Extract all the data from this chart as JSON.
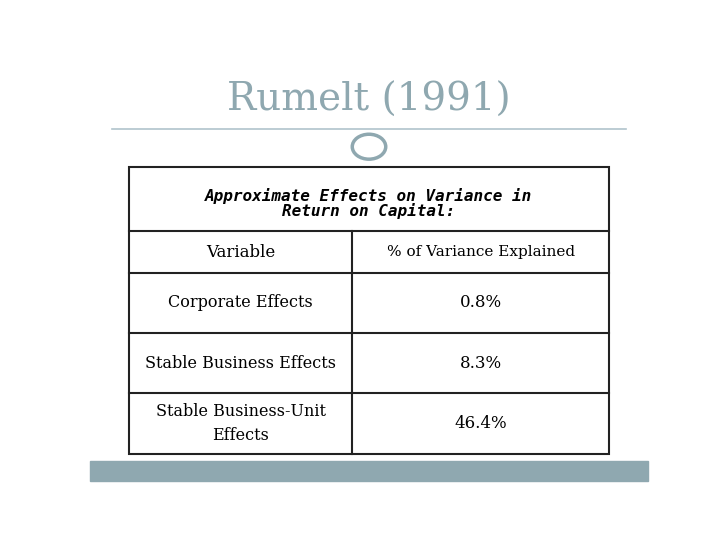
{
  "title": "Rumelt (1991)",
  "title_color": "#8fa8b0",
  "title_fontsize": 28,
  "bg_color": "#ffffff",
  "footer_color": "#8fa8b0",
  "table_header_line1": "Approximate Effects on Variance in",
  "table_header_line2": "Return on Capital:",
  "col1_header": "Variable",
  "col2_header": "% of Variance Explained",
  "rows": [
    [
      "Corporate Effects",
      "0.8%"
    ],
    [
      "Stable Business Effects",
      "8.3%"
    ],
    [
      "Stable Business-Unit\nEffects",
      "46.4%"
    ]
  ],
  "table_border_color": "#222222",
  "table_bg": "#ffffff",
  "circle_color": "#8fa8b0",
  "divider_color": "#b0c4cc"
}
